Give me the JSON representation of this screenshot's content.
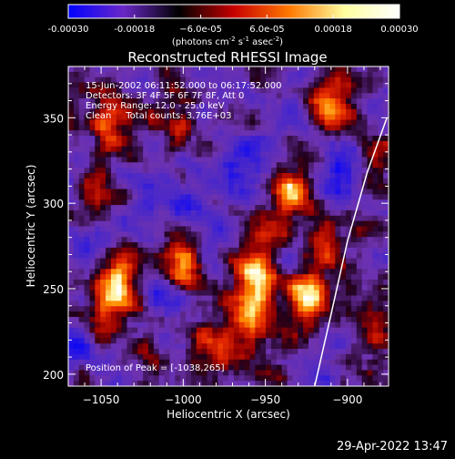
{
  "chart_data": {
    "type": "heatmap",
    "title": "Reconstructed RHESSI Image",
    "xlabel": "Heliocentric X (arcsec)",
    "ylabel": "Heliocentric Y (arcsec)",
    "xlim": [
      -1070,
      -875
    ],
    "ylim": [
      193,
      380
    ],
    "x_ticks": [
      -1050,
      -1000,
      -950,
      -900
    ],
    "y_ticks": [
      200,
      250,
      300,
      350
    ],
    "x_tick_labels": [
      "−1050",
      "−1000",
      "−950",
      "−900"
    ],
    "y_tick_labels": [
      "200",
      "250",
      "300",
      "350"
    ],
    "colorbar": {
      "range": [
        -0.0003,
        0.0003
      ],
      "ticks": [
        -0.0003,
        -0.00018,
        -6e-05,
        6e-05,
        0.00018,
        0.0003
      ],
      "tick_labels": [
        "-0.00030",
        "-0.00018",
        "−6.0e-05",
        "6.0e-05",
        "0.00018",
        "0.00030"
      ],
      "units_prefix": "(photons cm",
      "units_exp1": "-2",
      "units_mid1": " s",
      "units_exp2": "-1",
      "units_mid2": " asec",
      "units_exp3": "-2",
      "units_suffix": ")",
      "colors": [
        "#0000ff",
        "#6a28c8",
        "#000000",
        "#c80000",
        "#ff7800",
        "#ffffa0",
        "#ffffff"
      ]
    },
    "info_lines": [
      "15-Jun-2002 06:11:52.000 to 06:17:52.000",
      "Detectors: 3F 4F 5F 6F 7F 8F, Att 0",
      "Energy Range: 12.0 - 25.0 keV",
      "Clean     Total counts: 3.76E+03"
    ],
    "peak_label": "Position of Peak = [-1038,265]",
    "limb_curve": [
      [
        -920,
        193
      ],
      [
        -910,
        235
      ],
      [
        -900,
        278
      ],
      [
        -888,
        318
      ],
      [
        -876,
        350
      ]
    ],
    "sources": [
      {
        "x": -1040,
        "y": 258,
        "amp": 1.0
      },
      {
        "x": -1050,
        "y": 235,
        "amp": 0.6
      },
      {
        "x": -1000,
        "y": 262,
        "amp": 0.95
      },
      {
        "x": -955,
        "y": 250,
        "amp": 1.0
      },
      {
        "x": -960,
        "y": 225,
        "amp": 0.6
      },
      {
        "x": -925,
        "y": 245,
        "amp": 0.9
      },
      {
        "x": -935,
        "y": 305,
        "amp": 0.75
      },
      {
        "x": -1045,
        "y": 350,
        "amp": 0.85
      },
      {
        "x": -1000,
        "y": 345,
        "amp": 0.55
      },
      {
        "x": -910,
        "y": 360,
        "amp": 0.7
      },
      {
        "x": -980,
        "y": 215,
        "amp": 0.5
      },
      {
        "x": -955,
        "y": 280,
        "amp": 0.45
      },
      {
        "x": -1055,
        "y": 300,
        "amp": 0.4
      },
      {
        "x": -915,
        "y": 280,
        "amp": 0.5
      },
      {
        "x": -885,
        "y": 230,
        "amp": 0.55
      },
      {
        "x": -1020,
        "y": 210,
        "amp": 0.4
      },
      {
        "x": -885,
        "y": 330,
        "amp": 0.5
      }
    ],
    "negative_regions": [
      {
        "x": -1055,
        "y": 280,
        "amp": 0.7
      },
      {
        "x": -995,
        "y": 300,
        "amp": 0.6
      },
      {
        "x": -970,
        "y": 325,
        "amp": 0.5
      },
      {
        "x": -1010,
        "y": 250,
        "amp": 0.6
      },
      {
        "x": -905,
        "y": 320,
        "amp": 0.5
      },
      {
        "x": -1060,
        "y": 215,
        "amp": 0.5
      }
    ]
  },
  "timestamp": "29-Apr-2022 13:47"
}
